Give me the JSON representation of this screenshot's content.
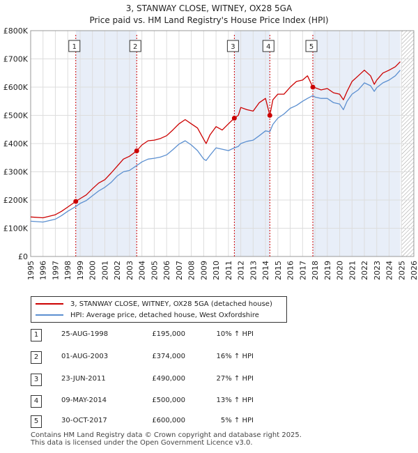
{
  "title": "3, STANWAY CLOSE, WITNEY, OX28 5GA",
  "subtitle": "Price paid vs. HM Land Registry's House Price Index (HPI)",
  "legend": {
    "property_label": "3, STANWAY CLOSE, WITNEY, OX28 5GA (detached house)",
    "hpi_label": "HPI: Average price, detached house, West Oxfordshire"
  },
  "colors": {
    "property": "#cc0000",
    "hpi": "#5b8fd0",
    "shade": "#e8eef8",
    "marker_line": "#cc0000",
    "hatch": "#999999"
  },
  "sales": [
    {
      "num": "1",
      "date": "25-AUG-1998",
      "price": "£195,000",
      "hpi": "10% ↑ HPI"
    },
    {
      "num": "2",
      "date": "01-AUG-2003",
      "price": "£374,000",
      "hpi": "16% ↑ HPI"
    },
    {
      "num": "3",
      "date": "23-JUN-2011",
      "price": "£490,000",
      "hpi": "27% ↑ HPI"
    },
    {
      "num": "4",
      "date": "09-MAY-2014",
      "price": "£500,000",
      "hpi": "13% ↑ HPI"
    },
    {
      "num": "5",
      "date": "30-OCT-2017",
      "price": "£600,000",
      "hpi": "5% ↑ HPI"
    }
  ],
  "footer": {
    "line1": "Contains HM Land Registry data © Crown copyright and database right 2025.",
    "line2": "This data is licensed under the Open Government Licence v3.0."
  },
  "chart_data": {
    "type": "line",
    "xlim": [
      1995,
      2026
    ],
    "ylim": [
      0,
      800000
    ],
    "x_ticks": [
      "1995",
      "1996",
      "1997",
      "1998",
      "1999",
      "2000",
      "2001",
      "2002",
      "2003",
      "2004",
      "2005",
      "2006",
      "2007",
      "2008",
      "2009",
      "2010",
      "2011",
      "2012",
      "2013",
      "2014",
      "2015",
      "2016",
      "2017",
      "2018",
      "2019",
      "2020",
      "2021",
      "2022",
      "2023",
      "2024",
      "2025",
      "2026"
    ],
    "y_ticks": [
      {
        "value": 0,
        "label": "£0"
      },
      {
        "value": 100000,
        "label": "£100K"
      },
      {
        "value": 200000,
        "label": "£200K"
      },
      {
        "value": 300000,
        "label": "£300K"
      },
      {
        "value": 400000,
        "label": "£400K"
      },
      {
        "value": 500000,
        "label": "£500K"
      },
      {
        "value": 600000,
        "label": "£600K"
      },
      {
        "value": 700000,
        "label": "£700K"
      },
      {
        "value": 800000,
        "label": "£800K"
      }
    ],
    "grid": true,
    "shaded_spans": [
      [
        1998.65,
        2003.58
      ],
      [
        2011.48,
        2014.35
      ],
      [
        2017.83,
        2024.9
      ]
    ],
    "hatched_from": 2025.0,
    "series": [
      {
        "name": "3, STANWAY CLOSE, WITNEY, OX28 5GA (detached house)",
        "x": [
          1995.0,
          1996.0,
          1997.0,
          1997.5,
          1998.0,
          1998.65,
          1999.0,
          1999.5,
          2000.0,
          2000.5,
          2001.0,
          2001.5,
          2002.0,
          2002.5,
          2003.0,
          2003.58,
          2004.0,
          2004.5,
          2005.0,
          2005.5,
          2006.0,
          2006.5,
          2007.0,
          2007.5,
          2008.0,
          2008.5,
          2009.0,
          2009.2,
          2009.5,
          2010.0,
          2010.5,
          2011.0,
          2011.48,
          2011.8,
          2012.0,
          2012.5,
          2013.0,
          2013.5,
          2014.0,
          2014.35,
          2014.6,
          2015.0,
          2015.5,
          2016.0,
          2016.5,
          2017.0,
          2017.4,
          2017.83,
          2018.0,
          2018.5,
          2019.0,
          2019.5,
          2020.0,
          2020.3,
          2020.6,
          2021.0,
          2021.5,
          2022.0,
          2022.5,
          2022.8,
          2023.0,
          2023.5,
          2024.0,
          2024.5,
          2024.9
        ],
        "y": [
          140000,
          137000,
          148000,
          160000,
          175000,
          195000,
          205000,
          218000,
          240000,
          260000,
          272000,
          295000,
          320000,
          345000,
          355000,
          374000,
          395000,
          410000,
          412000,
          418000,
          428000,
          448000,
          470000,
          485000,
          470000,
          455000,
          415000,
          400000,
          430000,
          460000,
          448000,
          470000,
          490000,
          500000,
          528000,
          520000,
          515000,
          545000,
          560000,
          500000,
          555000,
          575000,
          575000,
          600000,
          620000,
          625000,
          640000,
          600000,
          598000,
          590000,
          595000,
          580000,
          575000,
          555000,
          585000,
          620000,
          640000,
          660000,
          640000,
          610000,
          625000,
          650000,
          660000,
          672000,
          690000
        ]
      },
      {
        "name": "HPI: Average price, detached house, West Oxfordshire",
        "x": [
          1995.0,
          1996.0,
          1997.0,
          1997.5,
          1998.0,
          1998.65,
          1999.0,
          1999.5,
          2000.0,
          2000.5,
          2001.0,
          2001.5,
          2002.0,
          2002.5,
          2003.0,
          2003.58,
          2004.0,
          2004.5,
          2005.0,
          2005.5,
          2006.0,
          2006.5,
          2007.0,
          2007.5,
          2008.0,
          2008.5,
          2009.0,
          2009.2,
          2009.5,
          2010.0,
          2010.5,
          2011.0,
          2011.48,
          2011.8,
          2012.0,
          2012.5,
          2013.0,
          2013.5,
          2014.0,
          2014.35,
          2014.6,
          2015.0,
          2015.5,
          2016.0,
          2016.5,
          2017.0,
          2017.4,
          2017.83,
          2018.0,
          2018.5,
          2019.0,
          2019.5,
          2020.0,
          2020.3,
          2020.6,
          2021.0,
          2021.5,
          2022.0,
          2022.5,
          2022.8,
          2023.0,
          2023.5,
          2024.0,
          2024.5,
          2024.9
        ],
        "y": [
          125000,
          122000,
          132000,
          145000,
          160000,
          177000,
          188000,
          198000,
          215000,
          232000,
          245000,
          262000,
          285000,
          300000,
          305000,
          322000,
          335000,
          345000,
          348000,
          352000,
          360000,
          378000,
          398000,
          410000,
          395000,
          375000,
          345000,
          340000,
          358000,
          385000,
          380000,
          375000,
          385000,
          390000,
          400000,
          408000,
          412000,
          428000,
          445000,
          442000,
          468000,
          490000,
          505000,
          525000,
          535000,
          550000,
          560000,
          570000,
          565000,
          560000,
          560000,
          545000,
          540000,
          520000,
          550000,
          575000,
          590000,
          615000,
          605000,
          585000,
          598000,
          615000,
          625000,
          640000,
          660000
        ]
      }
    ],
    "markers": [
      {
        "label": "1",
        "x": 1998.65,
        "y": 195000
      },
      {
        "label": "2",
        "x": 2003.58,
        "y": 374000
      },
      {
        "label": "3",
        "x": 2011.48,
        "y": 490000
      },
      {
        "label": "4",
        "x": 2014.35,
        "y": 500000
      },
      {
        "label": "5",
        "x": 2017.83,
        "y": 600000
      }
    ]
  }
}
